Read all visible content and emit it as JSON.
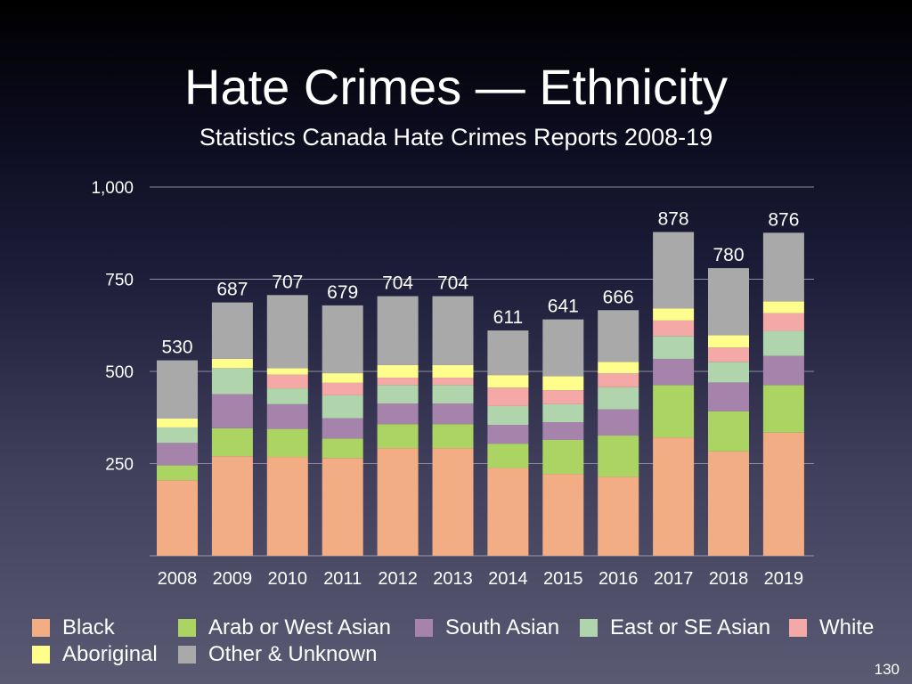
{
  "slide": {
    "title": "Hate Crimes — Ethnicity",
    "subtitle": "Statistics Canada Hate Crimes Reports 2008-19",
    "page_number": "130"
  },
  "chart_data": {
    "type": "bar",
    "stacked": true,
    "title": "Hate Crimes — Ethnicity",
    "subtitle": "Statistics Canada Hate Crimes Reports 2008-19",
    "xlabel": "",
    "ylabel": "",
    "ylim": [
      0,
      1000
    ],
    "yticks": [
      250,
      500,
      750,
      1000
    ],
    "ytick_labels": [
      "250",
      "500",
      "750",
      "1,000"
    ],
    "grid": true,
    "legend_position": "bottom",
    "categories": [
      "2008",
      "2009",
      "2010",
      "2011",
      "2012",
      "2013",
      "2014",
      "2015",
      "2016",
      "2017",
      "2018",
      "2019"
    ],
    "totals": [
      530,
      687,
      707,
      679,
      704,
      704,
      611,
      641,
      666,
      878,
      780,
      876
    ],
    "series": [
      {
        "name": "Black",
        "color": "#f3ad84",
        "values": [
          205,
          270,
          268,
          265,
          292,
          292,
          238,
          222,
          214,
          321,
          283,
          334
        ]
      },
      {
        "name": "Arab or West Asian",
        "color": "#acd463",
        "values": [
          40,
          76,
          76,
          53,
          65,
          65,
          66,
          92,
          112,
          142,
          109,
          129
        ]
      },
      {
        "name": "South Asian",
        "color": "#a583ab",
        "values": [
          61,
          92,
          67,
          55,
          56,
          56,
          51,
          48,
          71,
          71,
          78,
          79
        ]
      },
      {
        "name": "East or SE Asian",
        "color": "#b0d4ab",
        "values": [
          42,
          71,
          43,
          62,
          50,
          50,
          51,
          49,
          60,
          62,
          56,
          68
        ]
      },
      {
        "name": "White",
        "color": "#f4a9a6",
        "values": [
          0,
          0,
          37,
          34,
          20,
          20,
          50,
          38,
          38,
          42,
          39,
          48
        ]
      },
      {
        "name": "Aboriginal",
        "color": "#fffe8c",
        "values": [
          24,
          25,
          18,
          26,
          34,
          34,
          34,
          38,
          31,
          33,
          33,
          32
        ]
      },
      {
        "name": "Other & Unknown",
        "color": "#a9a9a9",
        "values": [
          158,
          153,
          198,
          184,
          187,
          187,
          121,
          154,
          140,
          207,
          182,
          186
        ]
      }
    ]
  }
}
